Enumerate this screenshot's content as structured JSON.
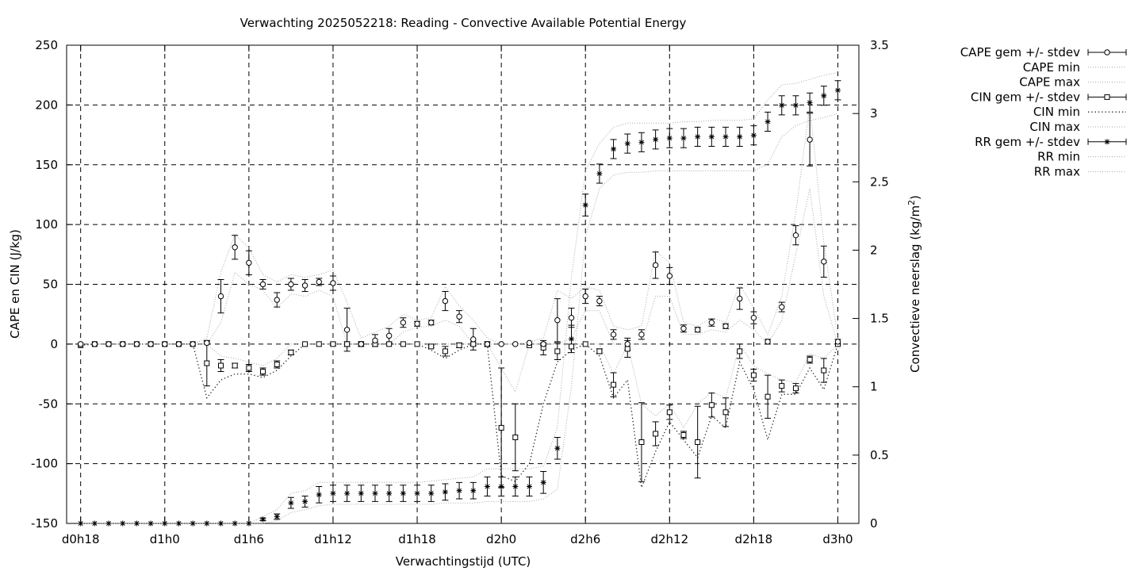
{
  "chart_data": {
    "type": "errorbar-line",
    "title": "Verwachting 2025052218: Reading - Convective Available Potential Energy",
    "xlabel": "Verwachtingstijd (UTC)",
    "ylabel_left": "CAPE en CIN (J/kg)",
    "ylabel_right_prefix": "Convectieve neerslag (kg/m",
    "ylabel_right_sup": "2",
    "ylabel_right_suffix": ")",
    "xlim_hours": [
      -1,
      55.5
    ],
    "x_start_hour": 18,
    "x_tick_labels": [
      "d0h18",
      "d1h0",
      "d1h6",
      "d1h12",
      "d1h18",
      "d2h0",
      "d2h6",
      "d2h12",
      "d2h18",
      "d3h0"
    ],
    "ylim_left": [
      -150,
      250
    ],
    "y_ticks_left": [
      -150,
      -100,
      -50,
      0,
      50,
      100,
      150,
      200,
      250
    ],
    "y_tick_labels_left": [
      "-150",
      "-100",
      "-50",
      "0",
      "50",
      "100",
      "150",
      "200",
      "250"
    ],
    "ylim_right": [
      0,
      3.5
    ],
    "y_ticks_right": [
      0,
      0.5,
      1,
      1.5,
      2,
      2.5,
      3,
      3.5
    ],
    "y_tick_labels_right": [
      "0",
      "0.5",
      "1",
      "1.5",
      "2",
      "2.5",
      "3",
      "3.5"
    ],
    "grid": true,
    "legend_position": "outside-right",
    "legend": [
      {
        "label": "CAPE gem +/- stdev",
        "style": "errorbar",
        "marker": "circle"
      },
      {
        "label": "CAPE min",
        "style": "dotted"
      },
      {
        "label": "CAPE max",
        "style": "dotted"
      },
      {
        "label": "CIN gem +/- stdev",
        "style": "errorbar",
        "marker": "square"
      },
      {
        "label": "CIN min",
        "style": "dotted-dark"
      },
      {
        "label": "CIN max",
        "style": "dotted"
      },
      {
        "label": "RR gem +/- stdev",
        "style": "errorbar",
        "marker": "star"
      },
      {
        "label": "RR min",
        "style": "dotted"
      },
      {
        "label": "RR max",
        "style": "dotted"
      }
    ],
    "series": {
      "cape": {
        "hours": [
          0,
          1,
          2,
          3,
          4,
          5,
          6,
          7,
          8,
          9,
          10,
          11,
          12,
          13,
          14,
          15,
          16,
          17,
          18,
          19,
          20,
          21,
          22,
          23,
          24,
          25,
          26,
          27,
          28,
          29,
          30,
          31,
          32,
          33,
          34,
          35,
          36,
          37,
          38,
          39,
          40,
          41,
          42,
          43,
          44,
          45,
          46,
          47,
          48,
          49,
          50,
          51,
          52,
          53,
          54
        ],
        "mean": [
          0,
          0,
          0,
          0,
          0,
          0,
          0,
          0,
          0,
          1,
          40,
          81,
          68,
          50,
          37,
          50,
          49,
          52,
          51,
          12,
          0,
          3,
          7,
          18,
          17,
          18,
          36,
          23,
          4,
          0,
          0,
          0,
          1,
          0,
          20,
          22,
          40,
          36,
          8,
          0,
          8,
          66,
          57,
          13,
          12,
          18,
          15,
          38,
          22,
          2,
          31,
          91,
          171,
          69,
          2
        ],
        "stdev": [
          0,
          0,
          0,
          0,
          0,
          0,
          0,
          0,
          0,
          1,
          14,
          10,
          10,
          4,
          6,
          5,
          5,
          3,
          6,
          18,
          2,
          5,
          6,
          4,
          2,
          2,
          8,
          5,
          9,
          2,
          0,
          0,
          0,
          1,
          18,
          8,
          6,
          4,
          4,
          5,
          4,
          11,
          7,
          3,
          2,
          3,
          2,
          9,
          5,
          2,
          4,
          8,
          22,
          13,
          2
        ],
        "min": [
          0,
          0,
          0,
          0,
          0,
          0,
          0,
          0,
          0,
          0,
          18,
          60,
          50,
          45,
          30,
          42,
          40,
          45,
          40,
          0,
          0,
          0,
          0,
          10,
          14,
          15,
          20,
          15,
          0,
          0,
          0,
          0,
          0,
          0,
          0,
          5,
          28,
          28,
          0,
          0,
          0,
          40,
          40,
          8,
          8,
          12,
          10,
          20,
          12,
          0,
          20,
          75,
          130,
          40,
          0
        ],
        "max": [
          0,
          0,
          0,
          0,
          0,
          0,
          0,
          0,
          0,
          5,
          60,
          92,
          80,
          58,
          52,
          58,
          56,
          58,
          62,
          35,
          5,
          10,
          15,
          25,
          20,
          22,
          48,
          32,
          20,
          5,
          0,
          0,
          2,
          5,
          45,
          38,
          48,
          45,
          15,
          12,
          15,
          78,
          68,
          18,
          15,
          22,
          18,
          50,
          30,
          8,
          40,
          110,
          200,
          85,
          5
        ]
      },
      "cin": {
        "hours": [
          0,
          1,
          2,
          3,
          4,
          5,
          6,
          7,
          8,
          9,
          10,
          11,
          12,
          13,
          14,
          15,
          16,
          17,
          18,
          19,
          20,
          21,
          22,
          23,
          24,
          25,
          26,
          27,
          28,
          29,
          30,
          31,
          32,
          33,
          34,
          35,
          36,
          37,
          38,
          39,
          40,
          41,
          42,
          43,
          44,
          45,
          46,
          47,
          48,
          49,
          50,
          51,
          52,
          53,
          54
        ],
        "mean": [
          -1,
          0,
          0,
          0,
          0,
          0,
          0,
          0,
          0,
          -16,
          -18,
          -18,
          -20,
          -23,
          -17,
          -7,
          0,
          0,
          0,
          0,
          0,
          0,
          0,
          0,
          0,
          -2,
          -6,
          -1,
          0,
          0,
          -70,
          -78,
          -1,
          -3,
          -6,
          -2,
          0,
          -6,
          -34,
          -4,
          -82,
          -75,
          -57,
          -76,
          -82,
          -51,
          -57,
          -6,
          -26,
          -44,
          -35,
          -37,
          -13,
          -22,
          0
        ],
        "stdev": [
          0,
          0,
          0,
          0,
          0,
          0,
          0,
          0,
          0,
          19,
          5,
          2,
          3,
          3,
          3,
          2,
          0,
          0,
          1,
          2,
          0,
          0,
          0,
          0,
          0,
          1,
          4,
          2,
          1,
          0,
          50,
          28,
          0,
          6,
          7,
          0,
          0,
          2,
          10,
          7,
          33,
          10,
          6,
          3,
          30,
          10,
          12,
          6,
          5,
          18,
          5,
          4,
          3,
          10,
          0
        ],
        "min": [
          -1,
          0,
          0,
          0,
          0,
          0,
          0,
          0,
          0,
          -45,
          -30,
          -25,
          -25,
          -28,
          -22,
          -10,
          0,
          0,
          0,
          0,
          0,
          0,
          0,
          0,
          0,
          -5,
          -12,
          -5,
          0,
          0,
          -110,
          -115,
          -100,
          -50,
          -15,
          -5,
          0,
          -10,
          -45,
          -30,
          -120,
          -90,
          -65,
          -80,
          -95,
          -60,
          -70,
          -15,
          -38,
          -80,
          -42,
          -42,
          -20,
          -38,
          0
        ],
        "max": [
          0,
          0,
          0,
          0,
          0,
          0,
          0,
          0,
          0,
          0,
          -10,
          -12,
          -15,
          -18,
          -12,
          0,
          0,
          0,
          0,
          0,
          0,
          0,
          0,
          0,
          0,
          0,
          0,
          0,
          0,
          0,
          -20,
          -40,
          0,
          0,
          0,
          0,
          0,
          0,
          -25,
          0,
          -50,
          -60,
          -50,
          -70,
          -50,
          -40,
          -45,
          0,
          -18,
          -25,
          -30,
          -32,
          -8,
          -12,
          0
        ]
      },
      "rr": {
        "hours": [
          0,
          1,
          2,
          3,
          4,
          5,
          6,
          7,
          8,
          9,
          10,
          11,
          12,
          13,
          14,
          15,
          16,
          17,
          18,
          19,
          20,
          21,
          22,
          23,
          24,
          25,
          26,
          27,
          28,
          29,
          30,
          31,
          32,
          33,
          34,
          35,
          36,
          37,
          38,
          39,
          40,
          41,
          42,
          43,
          44,
          45,
          46,
          47,
          48,
          49,
          50,
          51,
          52,
          53,
          54
        ],
        "mean": [
          0,
          0,
          0,
          0,
          0,
          0,
          0,
          0,
          0,
          0,
          0,
          0,
          0,
          0.03,
          0.05,
          0.15,
          0.16,
          0.21,
          0.22,
          0.22,
          0.22,
          0.22,
          0.22,
          0.22,
          0.22,
          0.22,
          0.23,
          0.24,
          0.24,
          0.27,
          0.27,
          0.27,
          0.27,
          0.3,
          0.55,
          1.35,
          2.33,
          2.56,
          2.74,
          2.78,
          2.79,
          2.81,
          2.82,
          2.82,
          2.83,
          2.83,
          2.83,
          2.83,
          2.84,
          2.94,
          3.06,
          3.06,
          3.08,
          3.13,
          3.17
        ],
        "stdev": [
          0,
          0,
          0,
          0,
          0,
          0,
          0,
          0,
          0,
          0,
          0,
          0,
          0,
          0.01,
          0.02,
          0.04,
          0.04,
          0.06,
          0.06,
          0.06,
          0.06,
          0.06,
          0.06,
          0.06,
          0.06,
          0.06,
          0.06,
          0.06,
          0.06,
          0.07,
          0.07,
          0.07,
          0.07,
          0.08,
          0.08,
          0.1,
          0.08,
          0.07,
          0.07,
          0.07,
          0.07,
          0.07,
          0.07,
          0.07,
          0.07,
          0.07,
          0.07,
          0.07,
          0.07,
          0.07,
          0.07,
          0.07,
          0.07,
          0.07,
          0.07
        ],
        "min": [
          0,
          0,
          0,
          0,
          0,
          0,
          0,
          0,
          0,
          0,
          0,
          0,
          0,
          0,
          0.02,
          0.08,
          0.1,
          0.13,
          0.14,
          0.14,
          0.14,
          0.14,
          0.14,
          0.14,
          0.14,
          0.14,
          0.15,
          0.15,
          0.15,
          0.16,
          0.16,
          0.16,
          0.16,
          0.18,
          0.25,
          1.0,
          2.1,
          2.45,
          2.55,
          2.57,
          2.57,
          2.58,
          2.58,
          2.58,
          2.58,
          2.58,
          2.58,
          2.58,
          2.58,
          2.63,
          2.83,
          2.91,
          2.95,
          2.97,
          3.0
        ],
        "max": [
          0,
          0,
          0,
          0,
          0,
          0,
          0,
          0,
          0,
          0,
          0,
          0,
          0,
          0.05,
          0.1,
          0.22,
          0.24,
          0.3,
          0.3,
          0.3,
          0.3,
          0.3,
          0.3,
          0.3,
          0.3,
          0.31,
          0.32,
          0.33,
          0.34,
          0.4,
          0.4,
          0.4,
          0.4,
          0.42,
          0.7,
          1.8,
          2.58,
          2.78,
          2.9,
          2.93,
          2.93,
          2.93,
          2.93,
          2.94,
          2.94,
          2.95,
          2.95,
          2.95,
          2.96,
          3.1,
          3.21,
          3.22,
          3.25,
          3.28,
          3.3
        ]
      }
    }
  }
}
